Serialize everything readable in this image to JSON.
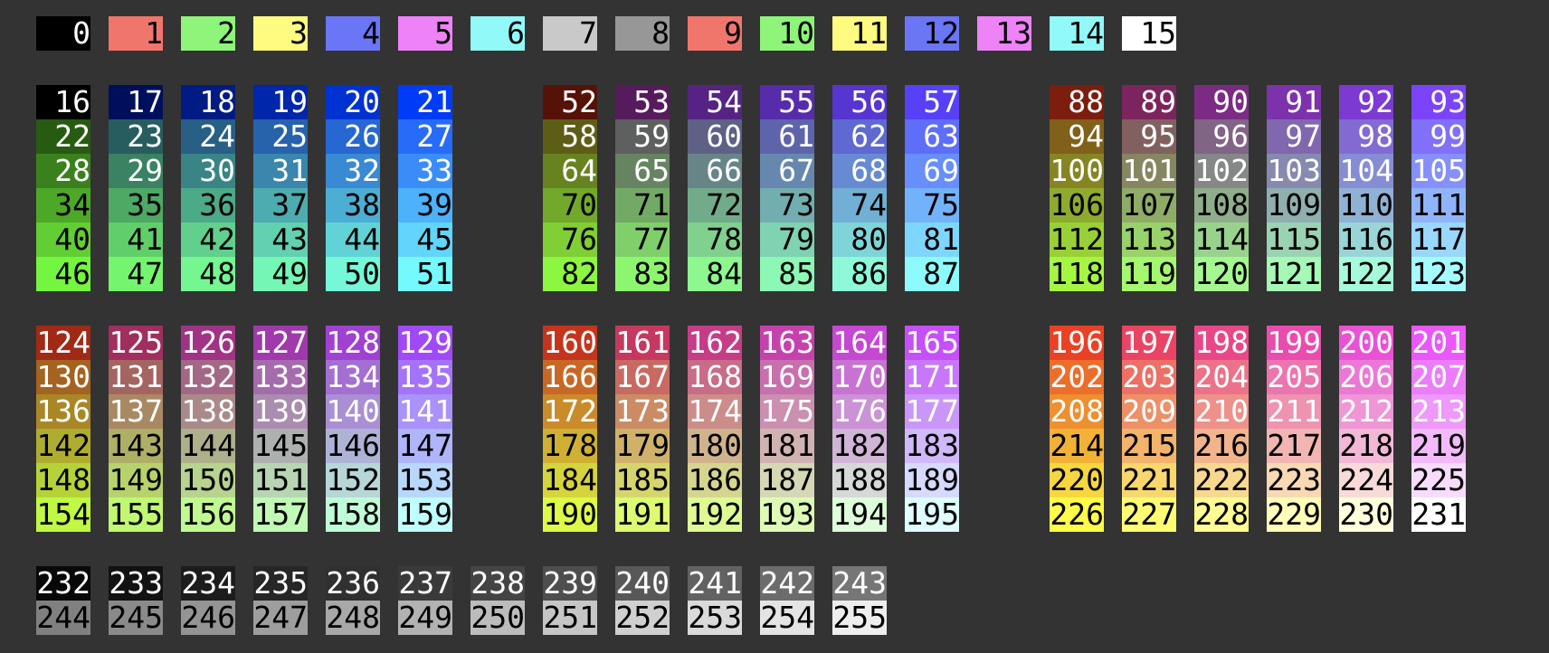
{
  "background": "#333333",
  "ansi": [
    [
      "0",
      "#000000",
      "#ffffff"
    ],
    [
      "1",
      "#f0766c",
      "#000000"
    ],
    [
      "2",
      "#8ef47a",
      "#000000"
    ],
    [
      "3",
      "#fffa80",
      "#000000"
    ],
    [
      "4",
      "#6a76f5",
      "#000000"
    ],
    [
      "5",
      "#ee82f7",
      "#000000"
    ],
    [
      "6",
      "#91faf9",
      "#000000"
    ],
    [
      "7",
      "#c9c9c9",
      "#000000"
    ],
    [
      "8",
      "#979797",
      "#000000"
    ],
    [
      "9",
      "#f0766c",
      "#000000"
    ],
    [
      "10",
      "#8ef47a",
      "#000000"
    ],
    [
      "11",
      "#fffa80",
      "#000000"
    ],
    [
      "12",
      "#6a76f5",
      "#000000"
    ],
    [
      "13",
      "#ee82f7",
      "#000000"
    ],
    [
      "14",
      "#91faf9",
      "#000000"
    ],
    [
      "15",
      "#ffffff",
      "#000000"
    ]
  ],
  "cube": [
    [
      "16",
      "#000000",
      "#ffffff"
    ],
    [
      "17",
      "#000f5c",
      "#ffffff"
    ],
    [
      "18",
      "#001b83",
      "#ffffff"
    ],
    [
      "19",
      "#0026ab",
      "#ffffff"
    ],
    [
      "20",
      "#0031d1",
      "#ffffff"
    ],
    [
      "21",
      "#003cf8",
      "#ffffff"
    ],
    [
      "22",
      "#275b11",
      "#ffffff"
    ],
    [
      "23",
      "#275d5f",
      "#ffffff"
    ],
    [
      "24",
      "#275f85",
      "#ffffff"
    ],
    [
      "25",
      "#2762ac",
      "#ffffff"
    ],
    [
      "26",
      "#2767d2",
      "#ffffff"
    ],
    [
      "27",
      "#276cf9",
      "#ffffff"
    ],
    [
      "28",
      "#3a811d",
      "#ffffff"
    ],
    [
      "29",
      "#3a8261",
      "#ffffff"
    ],
    [
      "30",
      "#3a8486",
      "#ffffff"
    ],
    [
      "31",
      "#3a86ad",
      "#ffffff"
    ],
    [
      "32",
      "#3a89d3",
      "#ffffff"
    ],
    [
      "33",
      "#3a8df9",
      "#ffffff"
    ],
    [
      "34",
      "#4da828",
      "#000000"
    ],
    [
      "35",
      "#4da964",
      "#000000"
    ],
    [
      "36",
      "#4daa89",
      "#000000"
    ],
    [
      "37",
      "#4dacaf",
      "#000000"
    ],
    [
      "38",
      "#4daed4",
      "#000000"
    ],
    [
      "39",
      "#4db1fb",
      "#000000"
    ],
    [
      "40",
      "#61ce33",
      "#000000"
    ],
    [
      "41",
      "#61cf69",
      "#000000"
    ],
    [
      "42",
      "#61d08c",
      "#000000"
    ],
    [
      "43",
      "#61d1b1",
      "#000000"
    ],
    [
      "44",
      "#61d3d6",
      "#000000"
    ],
    [
      "45",
      "#61d5fc",
      "#000000"
    ],
    [
      "46",
      "#74f53f",
      "#000000"
    ],
    [
      "47",
      "#74f56e",
      "#000000"
    ],
    [
      "48",
      "#74f690",
      "#000000"
    ],
    [
      "49",
      "#74f7b4",
      "#000000"
    ],
    [
      "50",
      "#74f8d8",
      "#000000"
    ],
    [
      "51",
      "#74fafe",
      "#000000"
    ],
    [
      "52",
      "#561207",
      "#ffffff"
    ],
    [
      "53",
      "#561b5d",
      "#ffffff"
    ],
    [
      "54",
      "#562384",
      "#ffffff"
    ],
    [
      "55",
      "#562cab",
      "#ffffff"
    ],
    [
      "56",
      "#5635d1",
      "#ffffff"
    ],
    [
      "57",
      "#5640f8",
      "#ffffff"
    ],
    [
      "58",
      "#5e5d16",
      "#ffffff"
    ],
    [
      "59",
      "#5e5f5f",
      "#ffffff"
    ],
    [
      "60",
      "#5e6185",
      "#ffffff"
    ],
    [
      "61",
      "#5e64ac",
      "#ffffff"
    ],
    [
      "62",
      "#5e69d2",
      "#ffffff"
    ],
    [
      "63",
      "#5e6ef9",
      "#ffffff"
    ],
    [
      "64",
      "#678320",
      "#ffffff"
    ],
    [
      "65",
      "#678462",
      "#ffffff"
    ],
    [
      "66",
      "#678587",
      "#ffffff"
    ],
    [
      "67",
      "#6788ae",
      "#ffffff"
    ],
    [
      "68",
      "#678bd3",
      "#ffffff"
    ],
    [
      "69",
      "#678efa",
      "#ffffff"
    ],
    [
      "70",
      "#72a92a",
      "#000000"
    ],
    [
      "71",
      "#72aa65",
      "#000000"
    ],
    [
      "72",
      "#72ab89",
      "#000000"
    ],
    [
      "73",
      "#72adaf",
      "#000000"
    ],
    [
      "74",
      "#72afd5",
      "#000000"
    ],
    [
      "75",
      "#72b2fb",
      "#000000"
    ],
    [
      "76",
      "#7fcf35",
      "#000000"
    ],
    [
      "77",
      "#7fd06a",
      "#000000"
    ],
    [
      "78",
      "#7fd18d",
      "#000000"
    ],
    [
      "79",
      "#7fd2b2",
      "#000000"
    ],
    [
      "80",
      "#7fd4d7",
      "#000000"
    ],
    [
      "81",
      "#7fd6fc",
      "#000000"
    ],
    [
      "82",
      "#8df640",
      "#000000"
    ],
    [
      "83",
      "#8df66f",
      "#000000"
    ],
    [
      "84",
      "#8df790",
      "#000000"
    ],
    [
      "85",
      "#8df8b5",
      "#000000"
    ],
    [
      "86",
      "#8df9d8",
      "#000000"
    ],
    [
      "87",
      "#8dfbfe",
      "#000000"
    ],
    [
      "88",
      "#7c1e0e",
      "#ffffff"
    ],
    [
      "89",
      "#7c245e",
      "#ffffff"
    ],
    [
      "90",
      "#7c2b84",
      "#ffffff"
    ],
    [
      "91",
      "#7c32ac",
      "#ffffff"
    ],
    [
      "92",
      "#7c3ad2",
      "#ffffff"
    ],
    [
      "93",
      "#7c44f8",
      "#ffffff"
    ],
    [
      "94",
      "#816019",
      "#ffffff"
    ],
    [
      "95",
      "#816160",
      "#ffffff"
    ],
    [
      "96",
      "#816486",
      "#ffffff"
    ],
    [
      "97",
      "#8167ad",
      "#ffffff"
    ],
    [
      "98",
      "#816bd3",
      "#ffffff"
    ],
    [
      "99",
      "#8170f9",
      "#ffffff"
    ],
    [
      "100",
      "#868523",
      "#ffffff"
    ],
    [
      "101",
      "#868662",
      "#ffffff"
    ],
    [
      "102",
      "#868787",
      "#ffffff"
    ],
    [
      "103",
      "#868aae",
      "#ffffff"
    ],
    [
      "104",
      "#868dd4",
      "#ffffff"
    ],
    [
      "105",
      "#8690fa",
      "#ffffff"
    ],
    [
      "106",
      "#8fab2d",
      "#000000"
    ],
    [
      "107",
      "#8fac66",
      "#000000"
    ],
    [
      "108",
      "#8fad8a",
      "#000000"
    ],
    [
      "109",
      "#8fafb0",
      "#000000"
    ],
    [
      "110",
      "#8fb1d5",
      "#000000"
    ],
    [
      "111",
      "#8fb4fb",
      "#000000"
    ],
    [
      "112",
      "#99d037",
      "#000000"
    ],
    [
      "113",
      "#99d16a",
      "#000000"
    ],
    [
      "114",
      "#99d28d",
      "#000000"
    ],
    [
      "115",
      "#99d3b2",
      "#000000"
    ],
    [
      "116",
      "#99d5d7",
      "#000000"
    ],
    [
      "117",
      "#99d7fc",
      "#000000"
    ],
    [
      "118",
      "#a5f642",
      "#000000"
    ],
    [
      "119",
      "#a5f770",
      "#000000"
    ],
    [
      "120",
      "#a5f891",
      "#000000"
    ],
    [
      "121",
      "#a5f8b5",
      "#000000"
    ],
    [
      "122",
      "#a5fad9",
      "#000000"
    ],
    [
      "123",
      "#a5fcfe",
      "#000000"
    ],
    [
      "124",
      "#a02a16",
      "#ffffff"
    ],
    [
      "125",
      "#a02e5f",
      "#ffffff"
    ],
    [
      "126",
      "#a03385",
      "#ffffff"
    ],
    [
      "127",
      "#a039ac",
      "#ffffff"
    ],
    [
      "128",
      "#a041d2",
      "#ffffff"
    ],
    [
      "129",
      "#a049f9",
      "#ffffff"
    ],
    [
      "130",
      "#a4631f",
      "#ffffff"
    ],
    [
      "131",
      "#a46561",
      "#ffffff"
    ],
    [
      "132",
      "#a46887",
      "#ffffff"
    ],
    [
      "133",
      "#a46bad",
      "#ffffff"
    ],
    [
      "134",
      "#a46ed3",
      "#ffffff"
    ],
    [
      "135",
      "#a473f9",
      "#ffffff"
    ],
    [
      "136",
      "#a98727",
      "#ffffff"
    ],
    [
      "137",
      "#a98963",
      "#ffffff"
    ],
    [
      "138",
      "#a98a88",
      "#ffffff"
    ],
    [
      "139",
      "#a98caf",
      "#ffffff"
    ],
    [
      "140",
      "#a98fd4",
      "#ffffff"
    ],
    [
      "141",
      "#a992fa",
      "#ffffff"
    ],
    [
      "142",
      "#aead2f",
      "#000000"
    ],
    [
      "143",
      "#aeae67",
      "#000000"
    ],
    [
      "144",
      "#aeaf8b",
      "#000000"
    ],
    [
      "145",
      "#aeb0b0",
      "#000000"
    ],
    [
      "146",
      "#aeb3d6",
      "#000000"
    ],
    [
      "147",
      "#aeb5fb",
      "#000000"
    ],
    [
      "148",
      "#b7d239",
      "#000000"
    ],
    [
      "149",
      "#b7d26c",
      "#000000"
    ],
    [
      "150",
      "#b7d38e",
      "#000000"
    ],
    [
      "151",
      "#b7d5b3",
      "#000000"
    ],
    [
      "152",
      "#b7d6d8",
      "#000000"
    ],
    [
      "153",
      "#b7d8fc",
      "#000000"
    ],
    [
      "154",
      "#c0f844",
      "#000000"
    ],
    [
      "155",
      "#c0f871",
      "#000000"
    ],
    [
      "156",
      "#c0f991",
      "#000000"
    ],
    [
      "157",
      "#c0fab6",
      "#000000"
    ],
    [
      "158",
      "#c0fbd9",
      "#000000"
    ],
    [
      "159",
      "#c0fdfe",
      "#000000"
    ],
    [
      "160",
      "#c5351d",
      "#ffffff"
    ],
    [
      "161",
      "#c53961",
      "#ffffff"
    ],
    [
      "162",
      "#c53d86",
      "#ffffff"
    ],
    [
      "163",
      "#c542ad",
      "#ffffff"
    ],
    [
      "164",
      "#c548d3",
      "#ffffff"
    ],
    [
      "165",
      "#c550f9",
      "#ffffff"
    ],
    [
      "166",
      "#c86824",
      "#ffffff"
    ],
    [
      "167",
      "#c86a62",
      "#ffffff"
    ],
    [
      "168",
      "#c86c88",
      "#ffffff"
    ],
    [
      "169",
      "#c86fae",
      "#ffffff"
    ],
    [
      "170",
      "#c873d4",
      "#ffffff"
    ],
    [
      "171",
      "#c877fa",
      "#ffffff"
    ],
    [
      "172",
      "#cb8b2b",
      "#ffffff"
    ],
    [
      "173",
      "#cb8c65",
      "#ffffff"
    ],
    [
      "174",
      "#cb8d89",
      "#ffffff"
    ],
    [
      "175",
      "#cb8fb0",
      "#ffffff"
    ],
    [
      "176",
      "#cb92d5",
      "#ffffff"
    ],
    [
      "177",
      "#cb96fa",
      "#ffffff"
    ],
    [
      "178",
      "#d0b033",
      "#000000"
    ],
    [
      "179",
      "#d0b169",
      "#000000"
    ],
    [
      "180",
      "#d0b28c",
      "#000000"
    ],
    [
      "181",
      "#d0b3b1",
      "#000000"
    ],
    [
      "182",
      "#d0b5d6",
      "#000000"
    ],
    [
      "183",
      "#d0b8fb",
      "#000000"
    ],
    [
      "184",
      "#d6d43c",
      "#000000"
    ],
    [
      "185",
      "#d6d56d",
      "#000000"
    ],
    [
      "186",
      "#d6d58f",
      "#000000"
    ],
    [
      "187",
      "#d6d7b4",
      "#000000"
    ],
    [
      "188",
      "#d6d8d8",
      "#000000"
    ],
    [
      "189",
      "#d6dafd",
      "#000000"
    ],
    [
      "190",
      "#def946",
      "#000000"
    ],
    [
      "191",
      "#defa72",
      "#000000"
    ],
    [
      "192",
      "#defa93",
      "#000000"
    ],
    [
      "193",
      "#defbb6",
      "#000000"
    ],
    [
      "194",
      "#defdda",
      "#000000"
    ],
    [
      "195",
      "#defeff",
      "#000000"
    ],
    [
      "196",
      "#e94125",
      "#ffffff"
    ],
    [
      "197",
      "#e94463",
      "#ffffff"
    ],
    [
      "198",
      "#e94788",
      "#ffffff"
    ],
    [
      "199",
      "#e94cae",
      "#ffffff"
    ],
    [
      "200",
      "#e952d4",
      "#ffffff"
    ],
    [
      "201",
      "#e958fa",
      "#ffffff"
    ],
    [
      "202",
      "#ec6e2b",
      "#ffffff"
    ],
    [
      "203",
      "#ec7065",
      "#ffffff"
    ],
    [
      "204",
      "#ec7289",
      "#ffffff"
    ],
    [
      "205",
      "#ec75af",
      "#ffffff"
    ],
    [
      "206",
      "#ec78d5",
      "#ffffff"
    ],
    [
      "207",
      "#ec7dfa",
      "#ffffff"
    ],
    [
      "208",
      "#ee8f30",
      "#ffffff"
    ],
    [
      "209",
      "#ee9067",
      "#ffffff"
    ],
    [
      "210",
      "#ee918b",
      "#ffffff"
    ],
    [
      "211",
      "#ee93b0",
      "#ffffff"
    ],
    [
      "212",
      "#ee96d6",
      "#ffffff"
    ],
    [
      "213",
      "#ee99fb",
      "#ffffff"
    ],
    [
      "214",
      "#f2b238",
      "#000000"
    ],
    [
      "215",
      "#f2b36b",
      "#000000"
    ],
    [
      "216",
      "#f2b48d",
      "#000000"
    ],
    [
      "217",
      "#f2b6b2",
      "#000000"
    ],
    [
      "218",
      "#f2b8d7",
      "#000000"
    ],
    [
      "219",
      "#f2bafc",
      "#000000"
    ],
    [
      "220",
      "#f8d640",
      "#000000"
    ],
    [
      "221",
      "#f8d76f",
      "#000000"
    ],
    [
      "222",
      "#f8d890",
      "#000000"
    ],
    [
      "223",
      "#f8d9b4",
      "#000000"
    ],
    [
      "224",
      "#f8dbd9",
      "#000000"
    ],
    [
      "225",
      "#f8dcfd",
      "#000000"
    ],
    [
      "226",
      "#fffb49",
      "#000000"
    ],
    [
      "227",
      "#fffc74",
      "#000000"
    ],
    [
      "228",
      "#fffc94",
      "#000000"
    ],
    [
      "229",
      "#fffdb7",
      "#000000"
    ],
    [
      "230",
      "#ffffdb",
      "#000000"
    ],
    [
      "231",
      "#ffffff",
      "#000000"
    ]
  ],
  "grayscale": [
    [
      "232",
      "#080808",
      "#ffffff"
    ],
    [
      "233",
      "#121212",
      "#ffffff"
    ],
    [
      "234",
      "#1c1c1c",
      "#ffffff"
    ],
    [
      "235",
      "#262626",
      "#ffffff"
    ],
    [
      "236",
      "#303030",
      "#ffffff"
    ],
    [
      "237",
      "#3a3a3a",
      "#ffffff"
    ],
    [
      "238",
      "#444444",
      "#ffffff"
    ],
    [
      "239",
      "#4e4e4e",
      "#ffffff"
    ],
    [
      "240",
      "#585858",
      "#ffffff"
    ],
    [
      "241",
      "#626262",
      "#ffffff"
    ],
    [
      "242",
      "#6c6c6c",
      "#ffffff"
    ],
    [
      "243",
      "#767676",
      "#ffffff"
    ],
    [
      "244",
      "#808080",
      "#000000"
    ],
    [
      "245",
      "#8a8a8a",
      "#000000"
    ],
    [
      "246",
      "#949494",
      "#000000"
    ],
    [
      "247",
      "#9e9e9e",
      "#000000"
    ],
    [
      "248",
      "#a8a8a8",
      "#000000"
    ],
    [
      "249",
      "#b2b2b2",
      "#000000"
    ],
    [
      "250",
      "#bcbcbc",
      "#000000"
    ],
    [
      "251",
      "#c6c6c6",
      "#000000"
    ],
    [
      "252",
      "#d0d0d0",
      "#000000"
    ],
    [
      "253",
      "#dadada",
      "#000000"
    ],
    [
      "254",
      "#e4e4e4",
      "#000000"
    ],
    [
      "255",
      "#eeeeee",
      "#000000"
    ]
  ]
}
